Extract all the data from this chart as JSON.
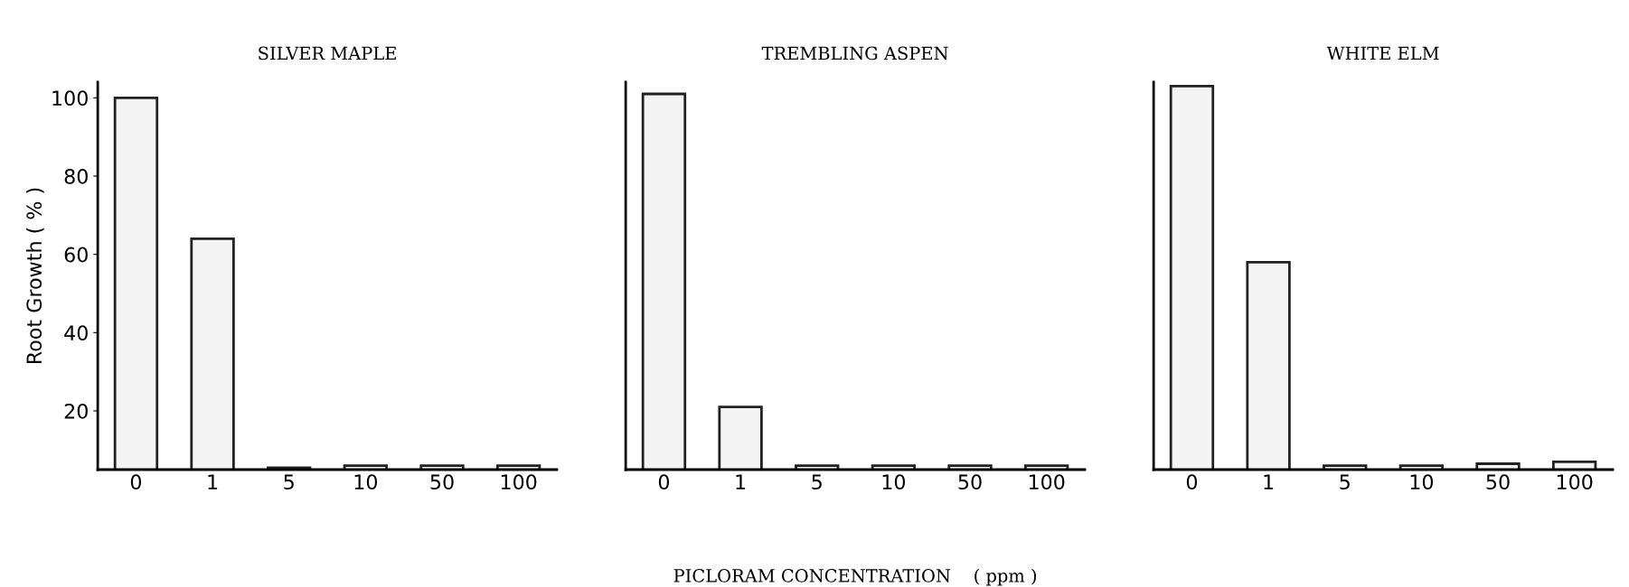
{
  "chart_data": [
    {
      "type": "bar",
      "title": "SILVER MAPLE",
      "ylabel": "Root Growth ( % )",
      "categories": [
        "0",
        "1",
        "5",
        "10",
        "50",
        "100"
      ],
      "values": [
        100,
        64,
        5.5,
        6,
        6,
        6
      ],
      "color": "#f4f4f4",
      "ylim": [
        5,
        104
      ],
      "yticks": [
        20,
        40,
        60,
        80,
        100
      ],
      "grid": false
    },
    {
      "type": "bar",
      "title": "TREMBLING ASPEN",
      "xlabel": "PICLORAM CONCENTRATION    ( ppm )",
      "categories": [
        "0",
        "1",
        "5",
        "10",
        "50",
        "100"
      ],
      "values": [
        101,
        21,
        6,
        6,
        6,
        6
      ],
      "color": "#f4f4f4",
      "ylim": [
        5,
        104
      ],
      "tick_labels": "x",
      "grid": false
    },
    {
      "type": "bar",
      "title": "WHITE ELM",
      "categories": [
        "0",
        "1",
        "5",
        "10",
        "50",
        "100"
      ],
      "values": [
        103,
        58,
        6,
        6,
        6.5,
        7
      ],
      "color": "#f4f4f4",
      "ylim": [
        5,
        104
      ],
      "tick_labels": "x",
      "grid": false
    }
  ]
}
